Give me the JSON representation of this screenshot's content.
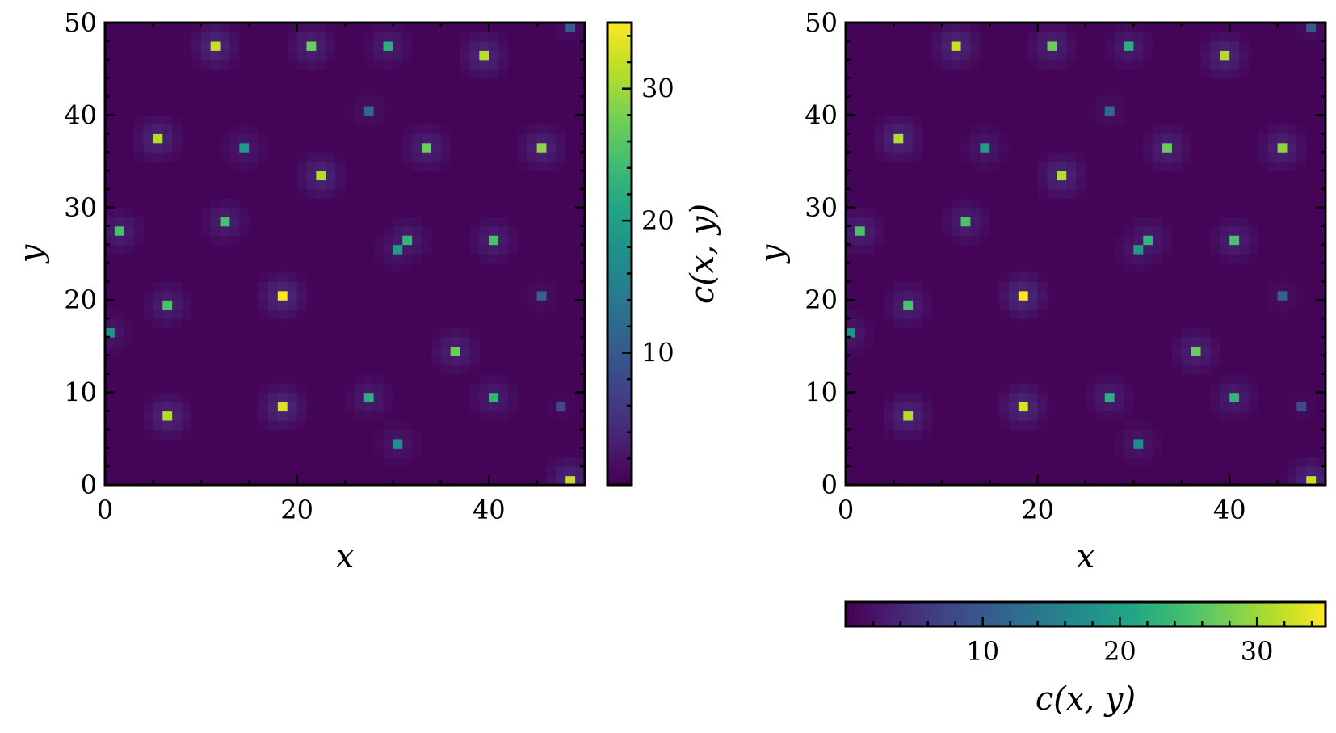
{
  "chart_data": [
    {
      "type": "heatmap",
      "panel": "left",
      "xlabel": "x",
      "ylabel": "y",
      "xlim": [
        0,
        50
      ],
      "ylim": [
        0,
        50
      ],
      "grid_size": 50,
      "xticks": [
        "0",
        "20",
        "40"
      ],
      "yticks": [
        "0",
        "10",
        "20",
        "30",
        "40",
        "50"
      ],
      "colormap": "viridis",
      "background_value": 0.3,
      "colorbar": {
        "orientation": "vertical",
        "position": "right",
        "label": "c(x, y)",
        "range": [
          0,
          35
        ],
        "ticks": [
          "10",
          "20",
          "30"
        ]
      },
      "peaks": [
        {
          "x": 11.5,
          "y": 47.5,
          "value": 32
        },
        {
          "x": 21.5,
          "y": 47.5,
          "value": 27
        },
        {
          "x": 29.5,
          "y": 47.5,
          "value": 22
        },
        {
          "x": 39.5,
          "y": 46.5,
          "value": 31
        },
        {
          "x": 48.5,
          "y": 49.5,
          "value": 10
        },
        {
          "x": 27.5,
          "y": 40.5,
          "value": 12
        },
        {
          "x": 5.5,
          "y": 37.5,
          "value": 31
        },
        {
          "x": 14.5,
          "y": 36.5,
          "value": 19
        },
        {
          "x": 33.5,
          "y": 36.5,
          "value": 27
        },
        {
          "x": 45.5,
          "y": 36.5,
          "value": 29
        },
        {
          "x": 22.5,
          "y": 33.5,
          "value": 31
        },
        {
          "x": 1.5,
          "y": 27.5,
          "value": 25
        },
        {
          "x": 12.5,
          "y": 28.5,
          "value": 25
        },
        {
          "x": 31.5,
          "y": 26.5,
          "value": 23
        },
        {
          "x": 30.5,
          "y": 25.5,
          "value": 19
        },
        {
          "x": 40.5,
          "y": 26.5,
          "value": 25
        },
        {
          "x": 6.5,
          "y": 19.5,
          "value": 25
        },
        {
          "x": 18.5,
          "y": 20.5,
          "value": 35
        },
        {
          "x": 45.5,
          "y": 20.5,
          "value": 11
        },
        {
          "x": 0.5,
          "y": 16.5,
          "value": 18
        },
        {
          "x": 36.5,
          "y": 14.5,
          "value": 27
        },
        {
          "x": 6.5,
          "y": 7.5,
          "value": 31
        },
        {
          "x": 18.5,
          "y": 8.5,
          "value": 33
        },
        {
          "x": 27.5,
          "y": 9.5,
          "value": 22
        },
        {
          "x": 40.5,
          "y": 9.5,
          "value": 23
        },
        {
          "x": 47.5,
          "y": 8.5,
          "value": 8
        },
        {
          "x": 30.5,
          "y": 4.5,
          "value": 17
        },
        {
          "x": 48.5,
          "y": 0.5,
          "value": 32
        }
      ]
    },
    {
      "type": "heatmap",
      "panel": "right",
      "xlabel": "x",
      "ylabel": "y",
      "xlim": [
        0,
        50
      ],
      "ylim": [
        0,
        50
      ],
      "grid_size": 50,
      "xticks": [
        "0",
        "20",
        "40"
      ],
      "yticks": [
        "0",
        "10",
        "20",
        "30",
        "40",
        "50"
      ],
      "colormap": "viridis",
      "background_value": 0.3,
      "colorbar": {
        "orientation": "horizontal",
        "position": "bottom",
        "label": "c(x, y)",
        "range": [
          0,
          35
        ],
        "ticks": [
          "10",
          "20",
          "30"
        ]
      },
      "peaks": [
        {
          "x": 11.5,
          "y": 47.5,
          "value": 32
        },
        {
          "x": 21.5,
          "y": 47.5,
          "value": 27
        },
        {
          "x": 29.5,
          "y": 47.5,
          "value": 22
        },
        {
          "x": 39.5,
          "y": 46.5,
          "value": 31
        },
        {
          "x": 48.5,
          "y": 49.5,
          "value": 10
        },
        {
          "x": 27.5,
          "y": 40.5,
          "value": 12
        },
        {
          "x": 5.5,
          "y": 37.5,
          "value": 31
        },
        {
          "x": 14.5,
          "y": 36.5,
          "value": 19
        },
        {
          "x": 33.5,
          "y": 36.5,
          "value": 27
        },
        {
          "x": 45.5,
          "y": 36.5,
          "value": 29
        },
        {
          "x": 22.5,
          "y": 33.5,
          "value": 31
        },
        {
          "x": 1.5,
          "y": 27.5,
          "value": 25
        },
        {
          "x": 12.5,
          "y": 28.5,
          "value": 25
        },
        {
          "x": 31.5,
          "y": 26.5,
          "value": 23
        },
        {
          "x": 30.5,
          "y": 25.5,
          "value": 19
        },
        {
          "x": 40.5,
          "y": 26.5,
          "value": 25
        },
        {
          "x": 6.5,
          "y": 19.5,
          "value": 25
        },
        {
          "x": 18.5,
          "y": 20.5,
          "value": 35
        },
        {
          "x": 45.5,
          "y": 20.5,
          "value": 11
        },
        {
          "x": 0.5,
          "y": 16.5,
          "value": 18
        },
        {
          "x": 36.5,
          "y": 14.5,
          "value": 27
        },
        {
          "x": 6.5,
          "y": 7.5,
          "value": 31
        },
        {
          "x": 18.5,
          "y": 8.5,
          "value": 33
        },
        {
          "x": 27.5,
          "y": 9.5,
          "value": 22
        },
        {
          "x": 40.5,
          "y": 9.5,
          "value": 23
        },
        {
          "x": 47.5,
          "y": 8.5,
          "value": 8
        },
        {
          "x": 30.5,
          "y": 4.5,
          "value": 17
        },
        {
          "x": 48.5,
          "y": 0.5,
          "value": 32
        }
      ]
    }
  ]
}
